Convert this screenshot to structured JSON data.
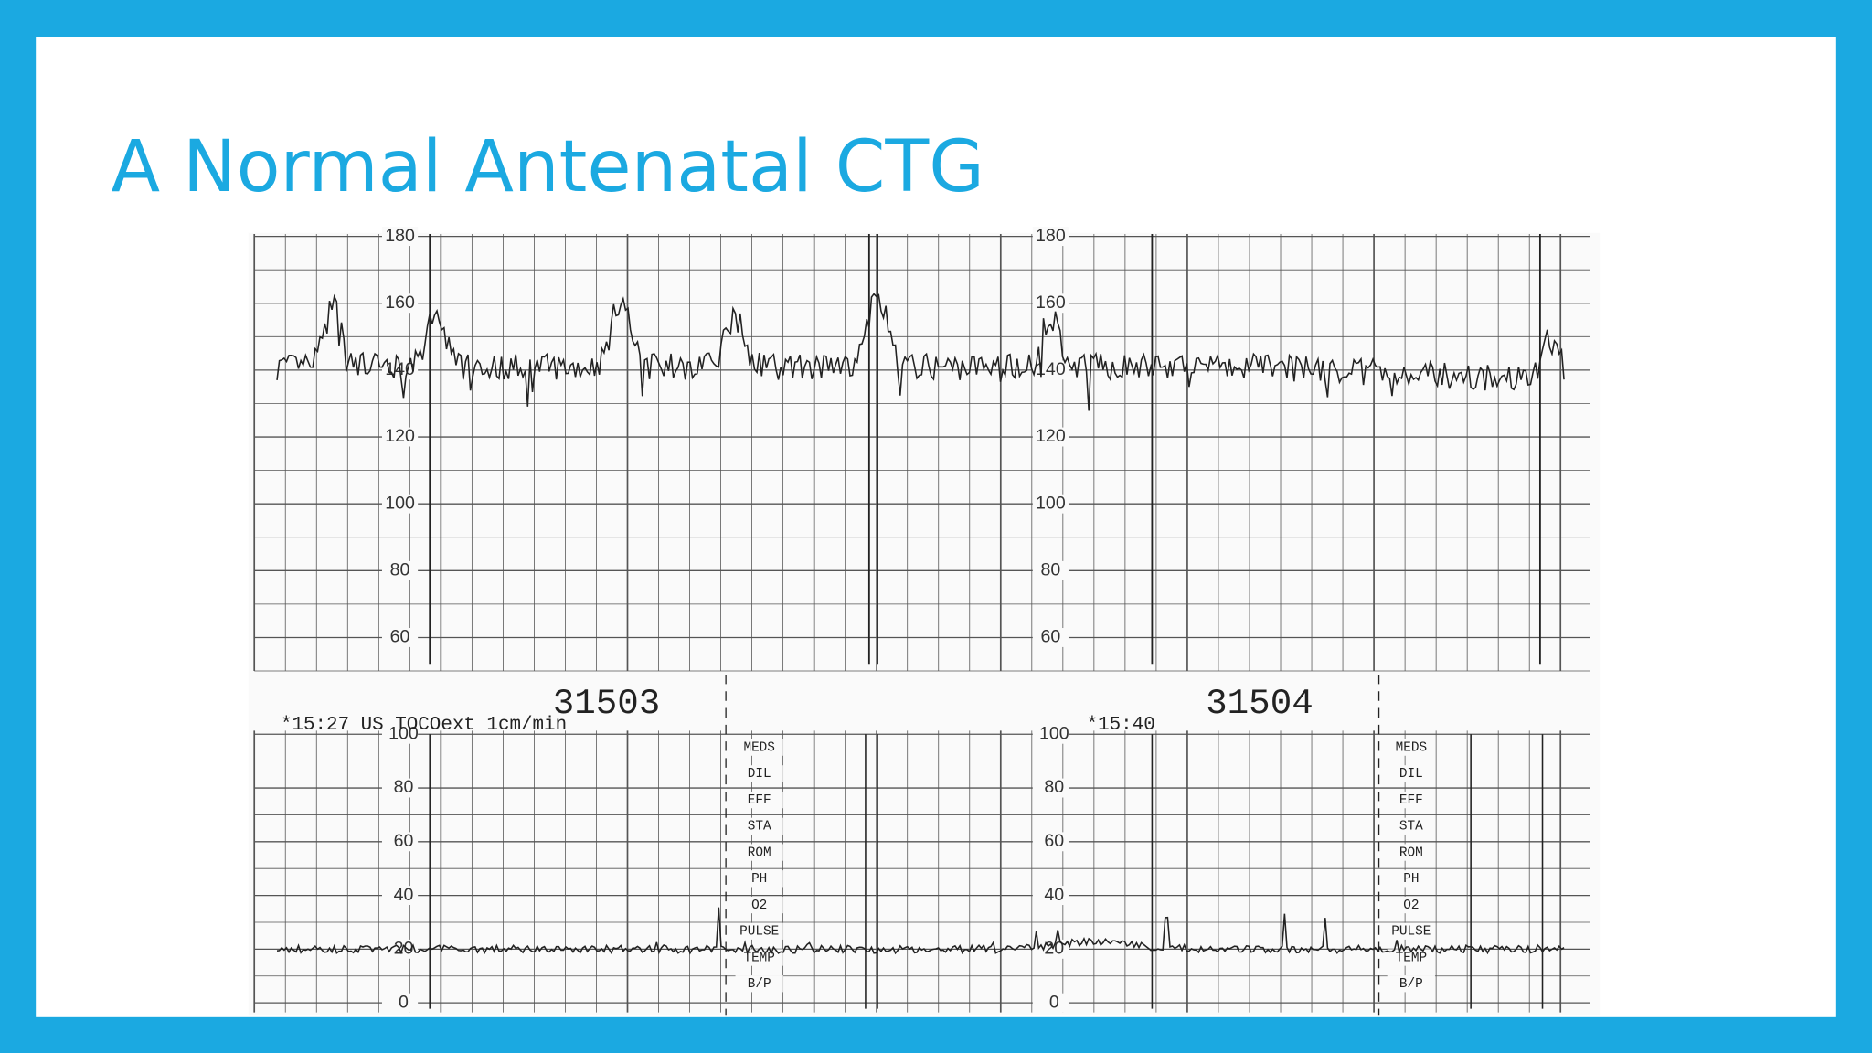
{
  "slide": {
    "title": "A Normal Antenatal CTG",
    "ctg": {
      "fhr_scale": [
        180,
        160,
        140,
        120,
        100,
        80,
        60
      ],
      "toco_scale": [
        100,
        80,
        60,
        40,
        20,
        0
      ],
      "strip_numbers": [
        "31503",
        "31504"
      ],
      "timestamps": [
        "*15:27 US TOCOext 1cm/min",
        "*15:40"
      ],
      "notes": [
        "MEDS",
        "DIL",
        "EFF",
        "STA",
        "ROM",
        "PH",
        "O2",
        "PULSE",
        "TEMP",
        "B/P"
      ]
    }
  }
}
